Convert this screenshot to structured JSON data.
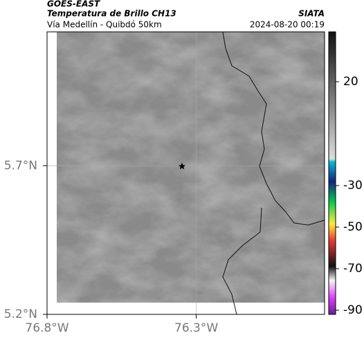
{
  "map": {
    "title": "GOES-EAST",
    "subtitle": "Temperatura de Brillo CH13",
    "source": "SIATA",
    "region": "Vía Medellín - Quibdó 50km",
    "datetime": "2024-08-20 00:19",
    "lonlim": [
      -76.8,
      -75.87
    ],
    "latlim": [
      5.2,
      6.15
    ],
    "lon_ticks": [
      {
        "value": -76.8,
        "label": "76.8°W"
      },
      {
        "value": -76.3,
        "label": "76.3°W"
      }
    ],
    "lat_ticks": [
      {
        "value": 5.7,
        "label": "5.7°N"
      },
      {
        "value": 5.2,
        "label": "5.2°N"
      }
    ],
    "colorbar": {
      "clim": [
        -92,
        44
      ],
      "ticks": [
        20,
        -30,
        -50,
        -70,
        -90
      ]
    }
  }
}
